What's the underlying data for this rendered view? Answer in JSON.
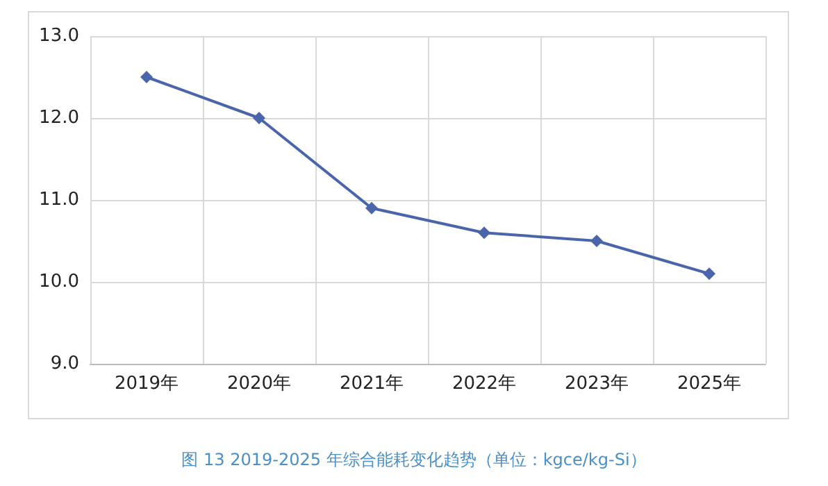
{
  "chart_data": {
    "type": "line",
    "title": "图 13 2019-2025 年综合能耗变化趋势（单位：kgce/kg-Si）",
    "categories": [
      "2019年",
      "2020年",
      "2021年",
      "2022年",
      "2023年",
      "2025年"
    ],
    "series": [
      {
        "color": "#4a65aa",
        "values": [
          12.5,
          12.0,
          10.9,
          10.6,
          10.5,
          10.1
        ]
      }
    ],
    "ylim": [
      9,
      13
    ],
    "yticks": [
      {
        "value": 9,
        "label": "9.0"
      },
      {
        "value": 10,
        "label": "10.0"
      },
      {
        "value": 11,
        "label": "11.0"
      },
      {
        "value": 12,
        "label": "12.0"
      },
      {
        "value": 13,
        "label": "13.0"
      }
    ],
    "grid": true,
    "marker": "diamond",
    "line_style": "solid"
  }
}
